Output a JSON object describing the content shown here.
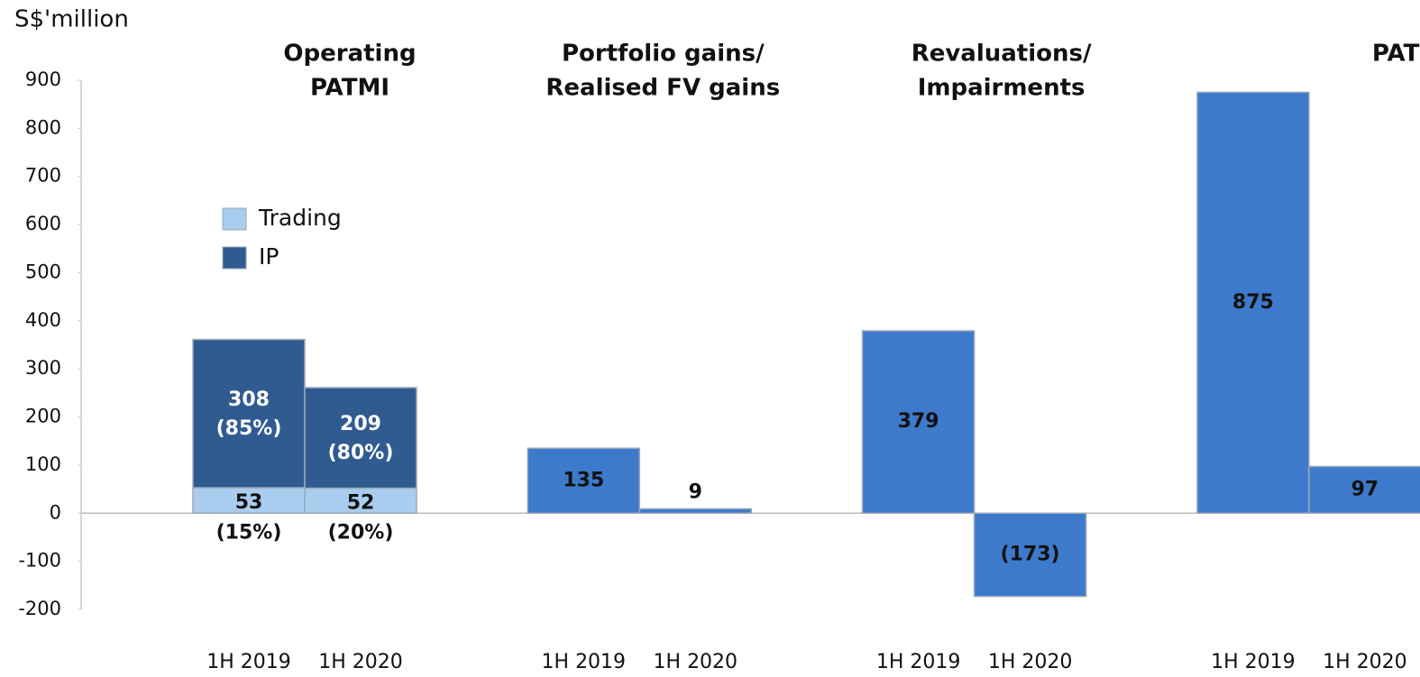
{
  "chart_data": {
    "type": "bar",
    "y_label": "S$'million",
    "ylim": [
      -200,
      900
    ],
    "yticks": [
      -200,
      -100,
      0,
      100,
      200,
      300,
      400,
      500,
      600,
      700,
      800,
      900
    ],
    "groups": [
      {
        "title": [
          "Operating",
          "PATMI"
        ],
        "stacked": true,
        "categories": [
          "1H 2019",
          "1H 2020"
        ],
        "series": [
          {
            "name": "Trading",
            "color": "#a9cdee",
            "values": [
              53,
              52
            ],
            "share_labels": [
              "(15%)",
              "(20%)"
            ]
          },
          {
            "name": "IP",
            "color": "#2f5b90",
            "values": [
              308,
              209
            ],
            "share_labels": [
              "(85%)",
              "(80%)"
            ]
          }
        ]
      },
      {
        "title": [
          "Portfolio gains/",
          "Realised FV gains"
        ],
        "categories": [
          "1H 2019",
          "1H 2020"
        ],
        "color": "#3d7acb",
        "values": [
          135,
          9
        ]
      },
      {
        "title": [
          "Revaluations/",
          "Impairments"
        ],
        "categories": [
          "1H 2019",
          "1H 2020"
        ],
        "color": "#3d7acb",
        "values": [
          379,
          -173
        ],
        "value_labels": [
          "379",
          "(173)"
        ]
      },
      {
        "title": [
          "PATMI"
        ],
        "categories": [
          "1H 2019",
          "1H 2020"
        ],
        "color": "#3d7acb",
        "values": [
          875,
          97
        ]
      }
    ]
  }
}
